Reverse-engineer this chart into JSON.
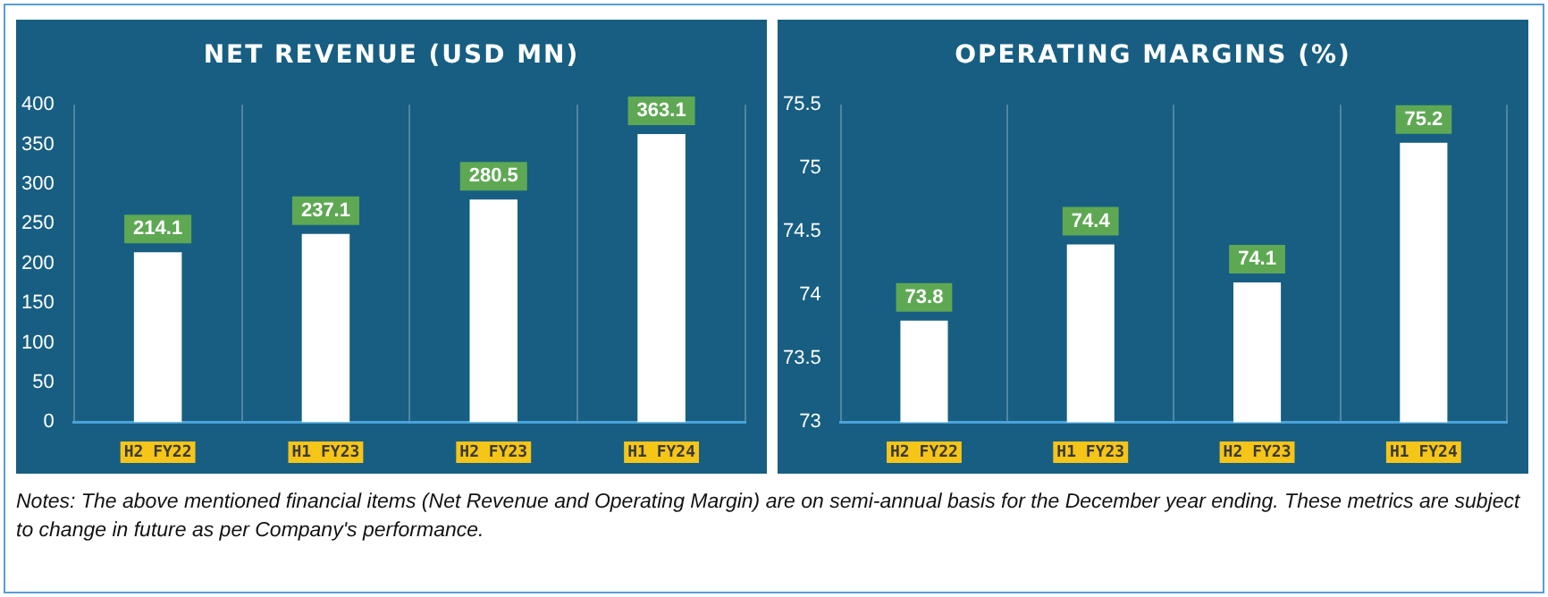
{
  "chart_data": [
    {
      "type": "bar",
      "title": "NET REVENUE (USD MN)",
      "categories": [
        "H2 FY22",
        "H1 FY23",
        "H2 FY23",
        "H1 FY24"
      ],
      "values": [
        214.1,
        237.1,
        280.5,
        363.1
      ],
      "color": "#ffffff",
      "ylim": [
        0,
        400
      ],
      "yticks": [
        0,
        50,
        100,
        150,
        200,
        250,
        300,
        350,
        400
      ],
      "grid": "x",
      "data_labels": true,
      "annotations": [
        "Notes: The above mentioned financial items (Net Revenue and Operating Margin) are on semi-annual basis for the December year ending. These metrics are subject to change in future as per Company's performance."
      ]
    },
    {
      "type": "bar",
      "title": "OPERATING MARGINS (%)",
      "categories": [
        "H2 FY22",
        "H1 FY23",
        "H2 FY23",
        "H1 FY24"
      ],
      "values": [
        73.8,
        74.4,
        74.1,
        75.2
      ],
      "color": "#ffffff",
      "ylim": [
        73,
        75.5
      ],
      "yticks": [
        73,
        73.5,
        74,
        74.5,
        75,
        75.5
      ],
      "grid": "x",
      "data_labels": true
    }
  ]
}
